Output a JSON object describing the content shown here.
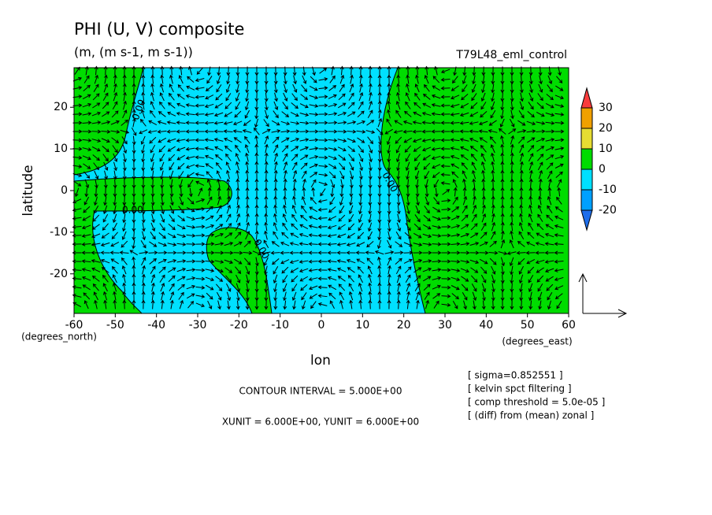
{
  "chart_data": {
    "type": "contour",
    "title": "PHI (U, V) composite",
    "subtitle": "(m, (m s-1, m s-1))",
    "experiment": "T79L48_eml_control",
    "x_label": "lon",
    "y_label": "latitude",
    "x_unit": "(degrees_east)",
    "y_unit": "(degrees_north)",
    "xlim": [
      -60,
      60
    ],
    "ylim": [
      -29.5,
      29.5
    ],
    "xticks": [
      -60,
      -50,
      -40,
      -30,
      -20,
      -10,
      0,
      10,
      20,
      30,
      40,
      50,
      60
    ],
    "yticks": [
      -20,
      -10,
      0,
      10,
      20
    ],
    "contour_label": "0.00",
    "colorbar": {
      "levels": [
        -20,
        -10,
        0,
        10,
        20,
        30
      ],
      "colors": [
        "#1e6eeb",
        "#00a0ff",
        "#00e0ff",
        "#00dc00",
        "#e6dc32",
        "#f0a000",
        "#fa3c3c"
      ]
    },
    "contour_interval": "CONTOUR INTERVAL = 5.000E+00",
    "vector_units": "XUNIT = 6.000E+00, YUNIT = 6.000E+00",
    "notes": [
      "[ sigma=0.852551 ]",
      "[ kelvin spct filtering ]",
      "[ comp threshold = 5.0e-05 ]",
      "[ (diff) from (mean) zonal ]"
    ]
  }
}
